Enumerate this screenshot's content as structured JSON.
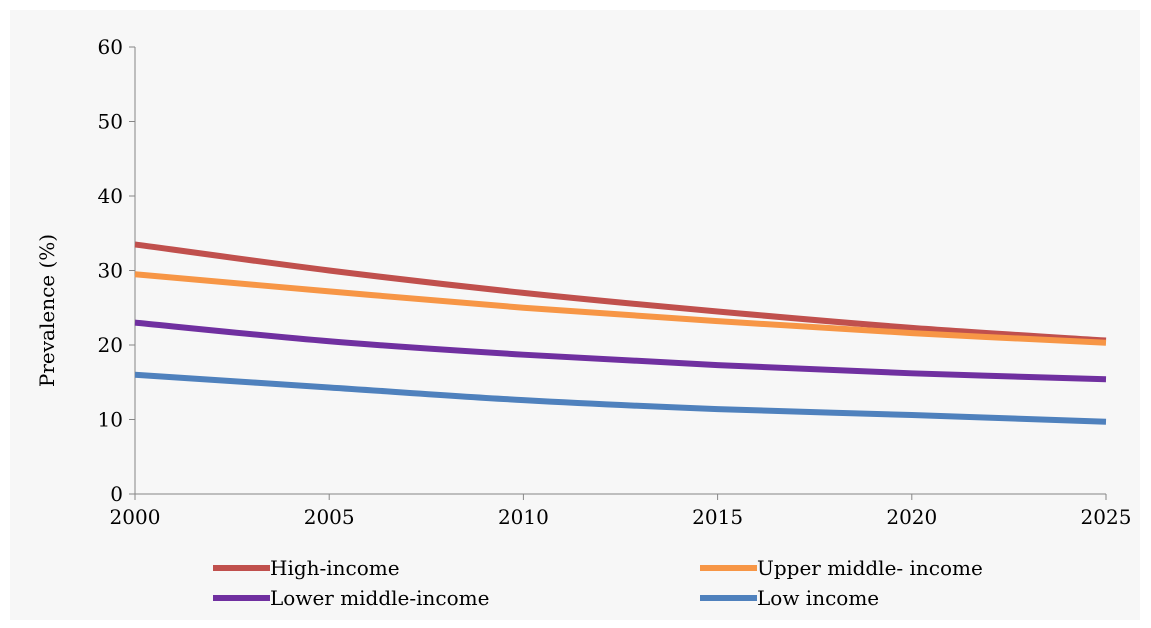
{
  "chart_data": {
    "type": "line",
    "title": "",
    "xlabel": "",
    "ylabel": "Prevalence (%)",
    "x": [
      2000,
      2005,
      2010,
      2015,
      2020,
      2025
    ],
    "xlim": [
      2000,
      2025
    ],
    "ylim": [
      0,
      60
    ],
    "yticks": [
      0,
      10,
      20,
      30,
      40,
      50,
      60
    ],
    "grid": false,
    "legend_position": "bottom",
    "series": [
      {
        "name": "High-income",
        "color": "#c0504d",
        "values": [
          33.5,
          30.0,
          27.0,
          24.5,
          22.3,
          20.6
        ]
      },
      {
        "name": "Upper middle- income",
        "color": "#f79646",
        "values": [
          29.5,
          27.2,
          25.0,
          23.2,
          21.6,
          20.3
        ]
      },
      {
        "name": "Lower middle-income",
        "color": "#7030a0",
        "values": [
          23.0,
          20.5,
          18.7,
          17.3,
          16.2,
          15.4
        ]
      },
      {
        "name": "Low income",
        "color": "#4f81bd",
        "values": [
          16.0,
          14.3,
          12.6,
          11.4,
          10.6,
          9.7
        ]
      }
    ]
  }
}
